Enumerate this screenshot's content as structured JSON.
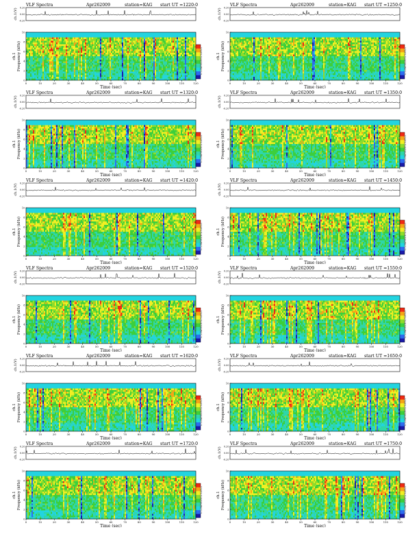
{
  "colors": {
    "spectrogram_scale": [
      "#1a1aa8",
      "#2e6cf0",
      "#22d4e0",
      "#2fd6a8",
      "#3ccf3c",
      "#8fdc2a",
      "#f2ef22",
      "#f5a516",
      "#ef2a14"
    ],
    "background": "#ffffff",
    "trace": "#000000"
  },
  "common": {
    "time_label": "Time (sec)",
    "freq_label": "Frequency (kHz)",
    "channel_label": "ch.1",
    "trace_label": "ch.1(V)",
    "colorbar_label": "log(PSD)(V^2/Hz)",
    "trace_ticks": [
      "0.20",
      "0.00",
      "-0.20"
    ],
    "freq_ticks": [
      "0",
      "2",
      "4",
      "6",
      "8",
      "10"
    ],
    "colorbar_ticks": [
      "-5",
      "-6",
      "-7"
    ]
  },
  "chart_data": [
    {
      "type": "heatmap",
      "title": "VLF Spectra",
      "date": "Apr262009",
      "station": "station=KAG",
      "start": "start  UT  =1220:0",
      "x_ticks": [
        "0",
        "10",
        "20",
        "30",
        "40",
        "50",
        "60",
        "70",
        "80",
        "90",
        "100",
        "110",
        "120"
      ],
      "xlim": [
        0,
        120
      ],
      "ylim": [
        0,
        10
      ],
      "trace_ylim": [
        -0.2,
        0.2
      ]
    },
    {
      "type": "heatmap",
      "title": "VLF Spectra",
      "date": "Apr262009",
      "station": "station=KAG",
      "start": "start  UT  =1250:0",
      "x_ticks": [
        "0",
        "10",
        "20",
        "30",
        "40",
        "50",
        "60",
        "70",
        "80",
        "90",
        "100",
        "110",
        "120"
      ],
      "xlim": [
        0,
        120
      ],
      "ylim": [
        0,
        10
      ],
      "trace_ylim": [
        -0.2,
        0.2
      ]
    },
    {
      "type": "heatmap",
      "title": "VLF Spectra",
      "date": "Apr262009",
      "station": "station=KAG",
      "start": "start  UT  =1320:0",
      "x_ticks": [
        "0",
        "10",
        "20",
        "30",
        "40",
        "50",
        "60",
        "70",
        "80",
        "90",
        "100",
        "110",
        "120"
      ],
      "xlim": [
        0,
        120
      ],
      "ylim": [
        0,
        10
      ],
      "trace_ylim": [
        -0.2,
        0.2
      ]
    },
    {
      "type": "heatmap",
      "title": "VLF Spectra",
      "date": "Apr262009",
      "station": "station=KAG",
      "start": "start  UT  =1350:0",
      "x_ticks": [
        "0",
        "10",
        "20",
        "30",
        "40",
        "50",
        "60",
        "70",
        "80",
        "90",
        "100",
        "110",
        "120"
      ],
      "xlim": [
        0,
        120
      ],
      "ylim": [
        0,
        10
      ],
      "trace_ylim": [
        -0.2,
        0.2
      ]
    },
    {
      "type": "heatmap",
      "title": "VLF Spectra",
      "date": "Apr262009",
      "station": "station=KAG",
      "start": "start  UT  =1420:0",
      "x_ticks": [
        "0",
        "10",
        "20",
        "30",
        "40",
        "50",
        "60",
        "70",
        "80",
        "90",
        "100",
        "110",
        "120"
      ],
      "xlim": [
        0,
        120
      ],
      "ylim": [
        0,
        10
      ],
      "trace_ylim": [
        -0.2,
        0.2
      ]
    },
    {
      "type": "heatmap",
      "title": "VLF Spectra",
      "date": "Apr262009",
      "station": "station=KAG",
      "start": "start  UT  =1450:0",
      "x_ticks": [
        "0",
        "10",
        "20",
        "30",
        "40",
        "50",
        "60",
        "70",
        "80",
        "90",
        "100",
        "110",
        "120"
      ],
      "xlim": [
        0,
        120
      ],
      "ylim": [
        0,
        10
      ],
      "trace_ylim": [
        -0.2,
        0.2
      ]
    },
    {
      "type": "heatmap",
      "title": "VLF Spectra",
      "date": "Apr262009",
      "station": "station=KAG",
      "start": "start  UT  =1520:0",
      "x_ticks": [
        "0",
        "10",
        "20",
        "30",
        "40",
        "50",
        "60",
        "70",
        "80",
        "90",
        "100",
        "110",
        "120"
      ],
      "xlim": [
        0,
        120
      ],
      "ylim": [
        0,
        10
      ],
      "trace_ylim": [
        -0.2,
        0.2
      ]
    },
    {
      "type": "heatmap",
      "title": "VLF Spectra",
      "date": "Apr262009",
      "station": "station=KAG",
      "start": "start  UT  =1550:0",
      "x_ticks": [
        "0",
        "10",
        "20",
        "30",
        "40",
        "50",
        "60",
        "70",
        "80",
        "90",
        "100",
        "110",
        "120"
      ],
      "xlim": [
        0,
        120
      ],
      "ylim": [
        0,
        10
      ],
      "trace_ylim": [
        -0.2,
        0.2
      ]
    },
    {
      "type": "heatmap",
      "title": "VLF Spectra",
      "date": "Apr262009",
      "station": "station=KAG",
      "start": "start  UT  =1620:0",
      "x_ticks": [
        "0",
        "10",
        "20",
        "30",
        "40",
        "50",
        "60",
        "70",
        "80",
        "90",
        "100",
        "110",
        "120"
      ],
      "xlim": [
        0,
        120
      ],
      "ylim": [
        0,
        10
      ],
      "trace_ylim": [
        -0.2,
        0.2
      ]
    },
    {
      "type": "heatmap",
      "title": "VLF Spectra",
      "date": "Apr262009",
      "station": "station=KAG",
      "start": "start  UT  =1650:0",
      "x_ticks": [
        "0",
        "10",
        "20",
        "30",
        "40",
        "50",
        "60",
        "70",
        "80",
        "90",
        "100",
        "110",
        "120"
      ],
      "xlim": [
        0,
        120
      ],
      "ylim": [
        0,
        10
      ],
      "trace_ylim": [
        -0.2,
        0.2
      ]
    },
    {
      "type": "heatmap",
      "title": "VLF Spectra",
      "date": "Apr262009",
      "station": "station=KAG",
      "start": "start  UT  =1720:0",
      "x_ticks": [
        "0",
        "10",
        "20",
        "30",
        "40",
        "50",
        "60",
        "70",
        "80",
        "90",
        "100",
        "110",
        "120"
      ],
      "xlim": [
        0,
        120
      ],
      "ylim": [
        0,
        10
      ],
      "trace_ylim": [
        -0.2,
        0.2
      ]
    },
    {
      "type": "heatmap",
      "title": "VLF Spectra",
      "date": "Apr262009",
      "station": "station=KAG",
      "start": "start  UT  =1750:0",
      "x_ticks": [
        "0",
        "10",
        "20",
        "30",
        "40",
        "50",
        "60",
        "70",
        "80",
        "90",
        "100",
        "110",
        "120"
      ],
      "xlim": [
        0,
        120
      ],
      "ylim": [
        0,
        10
      ],
      "trace_ylim": [
        -0.2,
        0.2
      ]
    }
  ]
}
